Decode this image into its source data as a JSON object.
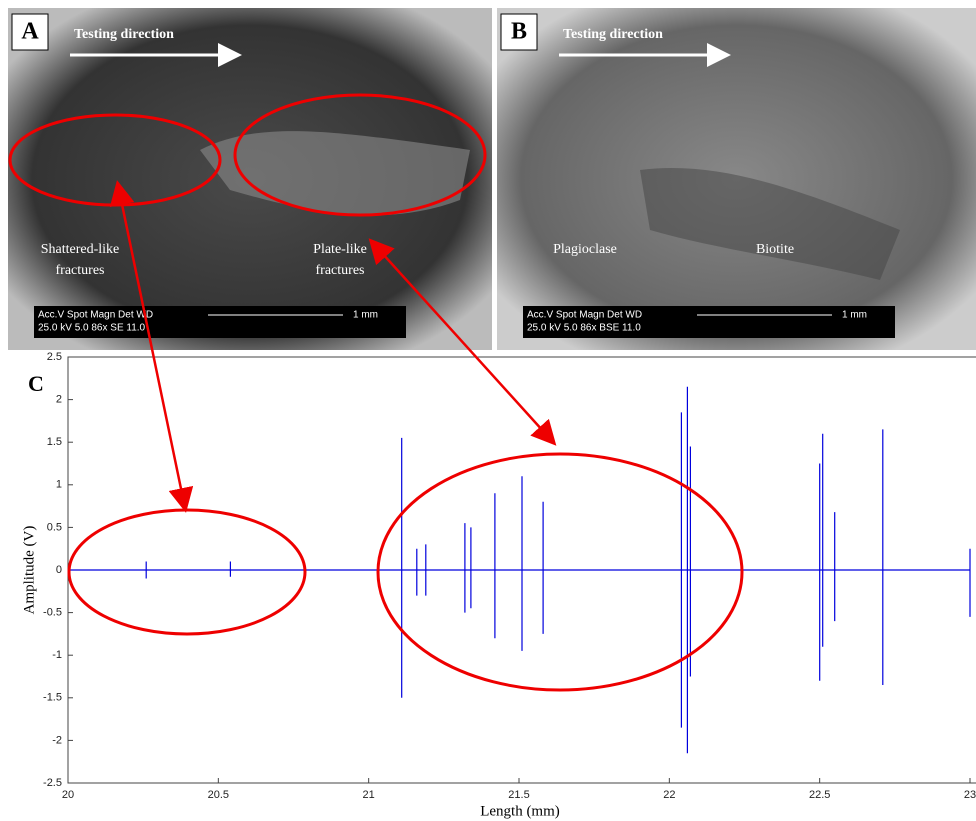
{
  "panels": [
    {
      "label": "A",
      "arrow_text": "Testing direction",
      "annotations": [
        {
          "lines": [
            "Shattered-like",
            "fractures"
          ]
        },
        {
          "lines": [
            "Plate-like",
            "fractures"
          ]
        }
      ],
      "scale_bar": {
        "lines": [
          "Acc.V  Spot Magn   Det  WD",
          "25.0 kV 5.0   86x     SE   11.0"
        ],
        "length": "1 mm"
      }
    },
    {
      "label": "B",
      "arrow_text": "Testing direction",
      "annotations": [
        {
          "lines": [
            "Plagioclase"
          ]
        },
        {
          "lines": [
            "Biotite"
          ]
        }
      ],
      "scale_bar": {
        "lines": [
          "Acc.V  Spot Magn   Det  WD",
          "25.0 kV 5.0   86x     BSE 11.0"
        ],
        "length": "1 mm"
      }
    }
  ],
  "chart_data": {
    "type": "line",
    "panel_label": "C",
    "x_label": "Length (mm)",
    "y_label": "Amplitude (V)",
    "color": "#0000dd",
    "xlim": [
      20,
      23
    ],
    "ylim": [
      -2.5,
      2.5
    ],
    "xticks": [
      20,
      20.5,
      21,
      21.5,
      22,
      22.5,
      23
    ],
    "yticks": [
      2.5,
      2,
      1.5,
      1,
      0.5,
      0,
      -0.5,
      -1,
      -1.5,
      -2,
      -2.5
    ],
    "x": [
      20,
      20.26,
      20.26,
      20.26,
      20.26,
      20.54,
      20.54,
      20.54,
      20.54,
      21.11,
      21.11,
      21.11,
      21.11,
      21.16,
      21.16,
      21.16,
      21.16,
      21.19,
      21.19,
      21.19,
      21.19,
      21.32,
      21.32,
      21.32,
      21.32,
      21.34,
      21.34,
      21.34,
      21.34,
      21.42,
      21.42,
      21.42,
      21.42,
      21.51,
      21.51,
      21.51,
      21.51,
      21.58,
      21.58,
      21.58,
      21.58,
      22.04,
      22.04,
      22.04,
      22.04,
      22.06,
      22.06,
      22.06,
      22.06,
      22.07,
      22.07,
      22.07,
      22.07,
      22.5,
      22.5,
      22.5,
      22.5,
      22.51,
      22.51,
      22.51,
      22.51,
      22.55,
      22.55,
      22.55,
      22.55,
      22.71,
      22.71,
      22.71,
      22.71,
      23,
      23,
      23
    ],
    "values": [
      0,
      0,
      0.1,
      -0.1,
      0,
      0,
      0.1,
      -0.08,
      0,
      0,
      1.55,
      -1.5,
      0,
      0,
      0.25,
      -0.3,
      0,
      0,
      0.3,
      -0.3,
      0,
      0,
      0.55,
      -0.5,
      0,
      0,
      0.5,
      -0.45,
      0,
      0,
      0.9,
      -0.8,
      0,
      0,
      1.1,
      -0.95,
      0,
      0,
      0.8,
      -0.75,
      0,
      0,
      1.85,
      -1.85,
      0,
      0,
      2.15,
      -2.15,
      0,
      0,
      1.45,
      -1.25,
      0,
      0,
      1.25,
      -1.3,
      0,
      0,
      1.6,
      -0.9,
      0,
      0,
      0.68,
      -0.6,
      0,
      0,
      1.65,
      -1.35,
      0,
      0,
      0.25,
      -0.55
    ]
  }
}
